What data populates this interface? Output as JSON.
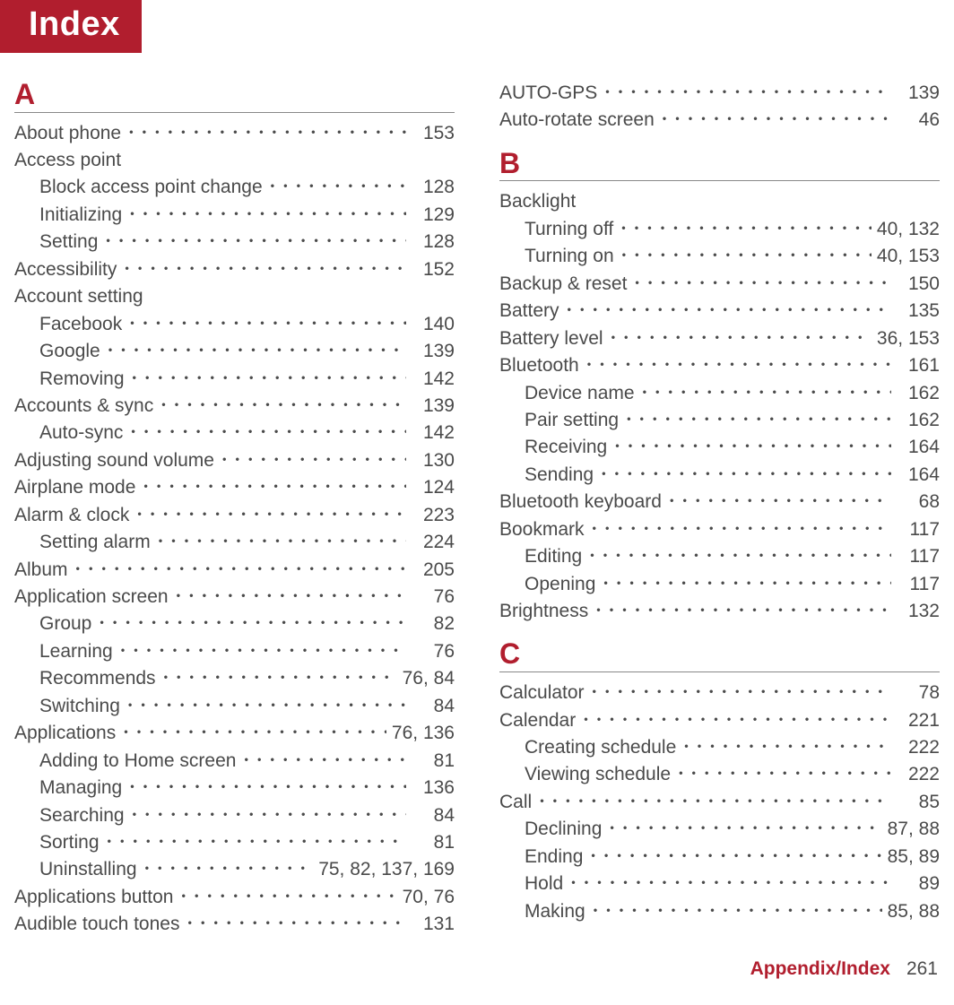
{
  "header": {
    "title": "Index"
  },
  "footer": {
    "section": "Appendix/Index",
    "page": "261"
  },
  "colors": {
    "accent": "#b11e2e",
    "text": "#4a4a4a",
    "rule": "#888888",
    "bg": "#ffffff"
  },
  "typography": {
    "body_fontsize_pt": 16,
    "letter_fontsize_pt": 24,
    "title_fontsize_pt": 28
  },
  "columns": [
    {
      "sections": [
        {
          "letter": "A",
          "entries": [
            {
              "label": "About phone",
              "page": "153",
              "sub": false
            },
            {
              "label": "Access point",
              "page": "",
              "sub": false,
              "noleader": true
            },
            {
              "label": "Block access point change",
              "page": "128",
              "sub": true
            },
            {
              "label": "Initializing",
              "page": "129",
              "sub": true
            },
            {
              "label": "Setting",
              "page": "128",
              "sub": true
            },
            {
              "label": "Accessibility",
              "page": "152",
              "sub": false
            },
            {
              "label": "Account setting",
              "page": "",
              "sub": false,
              "noleader": true
            },
            {
              "label": "Facebook",
              "page": "140",
              "sub": true
            },
            {
              "label": "Google",
              "page": "139",
              "sub": true
            },
            {
              "label": "Removing",
              "page": "142",
              "sub": true
            },
            {
              "label": "Accounts & sync",
              "page": "139",
              "sub": false
            },
            {
              "label": "Auto-sync",
              "page": "142",
              "sub": true
            },
            {
              "label": "Adjusting sound volume",
              "page": "130",
              "sub": false
            },
            {
              "label": "Airplane mode",
              "page": "124",
              "sub": false
            },
            {
              "label": "Alarm & clock",
              "page": "223",
              "sub": false
            },
            {
              "label": "Setting alarm",
              "page": "224",
              "sub": true
            },
            {
              "label": "Album",
              "page": "205",
              "sub": false
            },
            {
              "label": "Application screen",
              "page": "76",
              "sub": false
            },
            {
              "label": "Group",
              "page": "82",
              "sub": true
            },
            {
              "label": "Learning",
              "page": "76",
              "sub": true
            },
            {
              "label": "Recommends",
              "page": "76, 84",
              "sub": true
            },
            {
              "label": "Switching",
              "page": "84",
              "sub": true
            },
            {
              "label": "Applications",
              "page": "76, 136",
              "sub": false
            },
            {
              "label": "Adding to Home screen",
              "page": "81",
              "sub": true
            },
            {
              "label": "Managing",
              "page": "136",
              "sub": true
            },
            {
              "label": "Searching",
              "page": "84",
              "sub": true
            },
            {
              "label": "Sorting",
              "page": "81",
              "sub": true
            },
            {
              "label": "Uninstalling",
              "page": "75, 82, 137, 169",
              "sub": true
            },
            {
              "label": "Applications button",
              "page": "70, 76",
              "sub": false
            },
            {
              "label": "Audible touch tones",
              "page": "131",
              "sub": false
            }
          ]
        }
      ]
    },
    {
      "sections": [
        {
          "letter": "",
          "entries": [
            {
              "label": "AUTO-GPS",
              "page": "139",
              "sub": false
            },
            {
              "label": "Auto-rotate screen",
              "page": "46",
              "sub": false
            }
          ]
        },
        {
          "letter": "B",
          "entries": [
            {
              "label": "Backlight",
              "page": "",
              "sub": false,
              "noleader": true
            },
            {
              "label": "Turning off",
              "page": "40, 132",
              "sub": true
            },
            {
              "label": "Turning on",
              "page": "40, 153",
              "sub": true
            },
            {
              "label": "Backup & reset",
              "page": "150",
              "sub": false
            },
            {
              "label": "Battery",
              "page": "135",
              "sub": false
            },
            {
              "label": "Battery level",
              "page": "36, 153",
              "sub": false
            },
            {
              "label": "Bluetooth",
              "page": "161",
              "sub": false
            },
            {
              "label": "Device name",
              "page": "162",
              "sub": true
            },
            {
              "label": "Pair setting",
              "page": "162",
              "sub": true
            },
            {
              "label": "Receiving",
              "page": "164",
              "sub": true
            },
            {
              "label": "Sending",
              "page": "164",
              "sub": true
            },
            {
              "label": "Bluetooth keyboard",
              "page": "68",
              "sub": false
            },
            {
              "label": "Bookmark",
              "page": "117",
              "sub": false
            },
            {
              "label": "Editing",
              "page": "117",
              "sub": true
            },
            {
              "label": "Opening",
              "page": "117",
              "sub": true
            },
            {
              "label": "Brightness",
              "page": "132",
              "sub": false
            }
          ]
        },
        {
          "letter": "C",
          "entries": [
            {
              "label": "Calculator",
              "page": "78",
              "sub": false
            },
            {
              "label": "Calendar",
              "page": "221",
              "sub": false
            },
            {
              "label": "Creating schedule",
              "page": "222",
              "sub": true
            },
            {
              "label": "Viewing schedule",
              "page": "222",
              "sub": true
            },
            {
              "label": "Call",
              "page": "85",
              "sub": false
            },
            {
              "label": "Declining",
              "page": "87, 88",
              "sub": true
            },
            {
              "label": "Ending",
              "page": "85, 89",
              "sub": true
            },
            {
              "label": "Hold",
              "page": "89",
              "sub": true
            },
            {
              "label": "Making",
              "page": "85, 88",
              "sub": true
            }
          ]
        }
      ]
    }
  ]
}
